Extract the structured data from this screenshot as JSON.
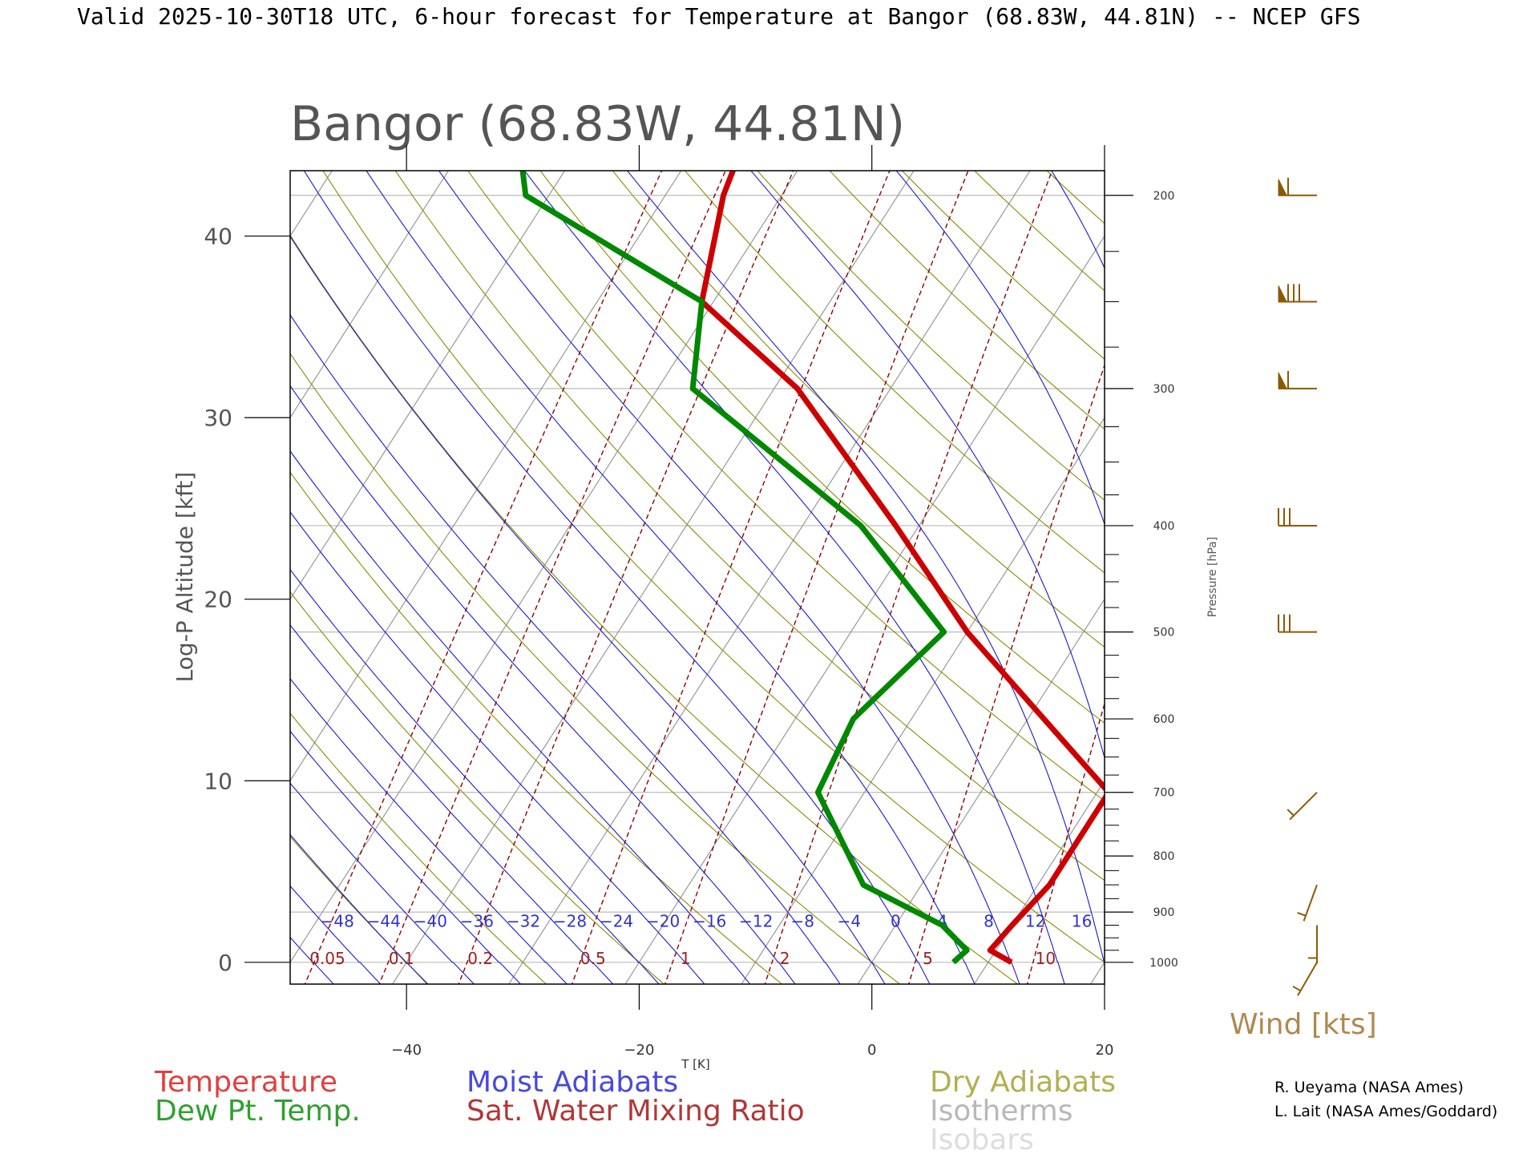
{
  "header": "Valid 2025-10-30T18 UTC, 6-hour forecast for Temperature at Bangor (68.83W, 44.81N) -- NCEP GFS",
  "colors": {
    "temperature": "#cc0000",
    "dewpoint": "#008800",
    "moist_adiabat": "#1a1acc",
    "mixing_ratio": "#8b0000",
    "dry_adiabat": "#8b8b00",
    "isotherm": "#999999",
    "isobar": "#bbbbbb",
    "wind": "#8b5a00",
    "frame": "#000000"
  },
  "legend": {
    "temperature": "Temperature",
    "dewpoint": "Dew Pt. Temp.",
    "moist": "Moist Adiabats",
    "mixing": "Sat. Water Mixing Ratio",
    "dry": "Dry Adiabats",
    "isotherms": "Isotherms",
    "isobars": "Isobars"
  },
  "wind_label": "Wind [kts]",
  "credits": [
    "R. Ueyama (NASA Ames)",
    "L. Lait (NASA Ames/Goddard)"
  ],
  "chart_data": {
    "type": "line",
    "subtype": "skew-T log-P diagram",
    "title": "Bangor (68.83W, 44.81N)",
    "xlabel": "T [K]",
    "ylabel": "Log-P Altitude [kft]",
    "y2label": "Pressure [hPa]",
    "xlim": [
      -50,
      20
    ],
    "ylim": [
      -1.2,
      43.6
    ],
    "x_ticks": [
      -40,
      -20,
      0,
      20
    ],
    "x_tick_labels": [
      "−40",
      "−20",
      "0",
      "20"
    ],
    "y_ticks": [
      0,
      10,
      20,
      30,
      40
    ],
    "pressure_labels": [
      1000,
      900,
      800,
      700,
      600,
      500,
      400,
      300,
      200
    ],
    "pressure_minor_ticks": [
      950,
      850,
      750,
      650,
      550,
      450,
      350,
      250,
      225,
      275,
      325,
      375,
      425,
      475,
      525,
      575,
      625,
      675,
      725,
      775,
      825,
      875,
      925,
      975,
      175
    ],
    "isobar_lines": [
      1000,
      900,
      700,
      500,
      400,
      300,
      200
    ],
    "moist_adiabat_labels": [
      "−48",
      "−44",
      "−40",
      "−36",
      "−32",
      "−28",
      "−24",
      "−20",
      "−16",
      "−12",
      "−8",
      "−4",
      "0",
      "4",
      "8",
      "12",
      "16"
    ],
    "moist_adiabat_values": [
      -48,
      -44,
      -40,
      -36,
      -32,
      -28,
      -24,
      -20,
      -16,
      -12,
      -8,
      -4,
      0,
      4,
      8,
      12,
      16
    ],
    "mixing_ratio_values": [
      0.05,
      0.1,
      0.2,
      0.5,
      1,
      2,
      5,
      10
    ],
    "mixing_ratio_labels": [
      "0.05",
      "0.1",
      "0.2",
      "0.5",
      "1",
      "2",
      "5",
      "10"
    ],
    "dry_adiabat_thetas": [
      -40,
      -30,
      -20,
      -10,
      0,
      10,
      20,
      30,
      40,
      50,
      60,
      70,
      80,
      90,
      100,
      110,
      120,
      130,
      140,
      150
    ],
    "isotherm_values": [
      -110,
      -100,
      -90,
      -80,
      -70,
      -60,
      -50,
      -40,
      -30,
      -20,
      -10,
      0,
      10,
      20
    ],
    "series": [
      {
        "name": "Temperature",
        "points": [
          {
            "p": 1000,
            "t": 12.0
          },
          {
            "p": 975,
            "t": 9.5
          },
          {
            "p": 925,
            "t": 10.0
          },
          {
            "p": 850,
            "t": 11.0
          },
          {
            "p": 700,
            "t": 11.0
          },
          {
            "p": 500,
            "t": -10.0
          },
          {
            "p": 400,
            "t": -22.0
          },
          {
            "p": 300,
            "t": -38.0
          },
          {
            "p": 250,
            "t": -51.0
          },
          {
            "p": 200,
            "t": -55.0
          },
          {
            "p": 150,
            "t": -58.0
          }
        ]
      },
      {
        "name": "Dew Pt. Temp.",
        "points": [
          {
            "p": 1000,
            "t": 7.0
          },
          {
            "p": 975,
            "t": 7.5
          },
          {
            "p": 925,
            "t": 4.0
          },
          {
            "p": 850,
            "t": -5.0
          },
          {
            "p": 700,
            "t": -14.0
          },
          {
            "p": 600,
            "t": -15.0
          },
          {
            "p": 500,
            "t": -12.0
          },
          {
            "p": 400,
            "t": -25.0
          },
          {
            "p": 300,
            "t": -47.0
          },
          {
            "p": 250,
            "t": -51.0
          },
          {
            "p": 200,
            "t": -72.0
          },
          {
            "p": 150,
            "t": -81.0
          }
        ]
      }
    ],
    "wind_barbs": [
      {
        "p": 200,
        "dir": 270,
        "kts": 60
      },
      {
        "p": 250,
        "dir": 270,
        "kts": 80
      },
      {
        "p": 300,
        "dir": 270,
        "kts": 60
      },
      {
        "p": 400,
        "dir": 270,
        "kts": 30
      },
      {
        "p": 500,
        "dir": 270,
        "kts": 30
      },
      {
        "p": 700,
        "dir": 225,
        "kts": 5
      },
      {
        "p": 850,
        "dir": 200,
        "kts": 5
      },
      {
        "p": 925,
        "dir": 180,
        "kts": 5
      },
      {
        "p": 1000,
        "dir": 210,
        "kts": 5
      }
    ]
  }
}
